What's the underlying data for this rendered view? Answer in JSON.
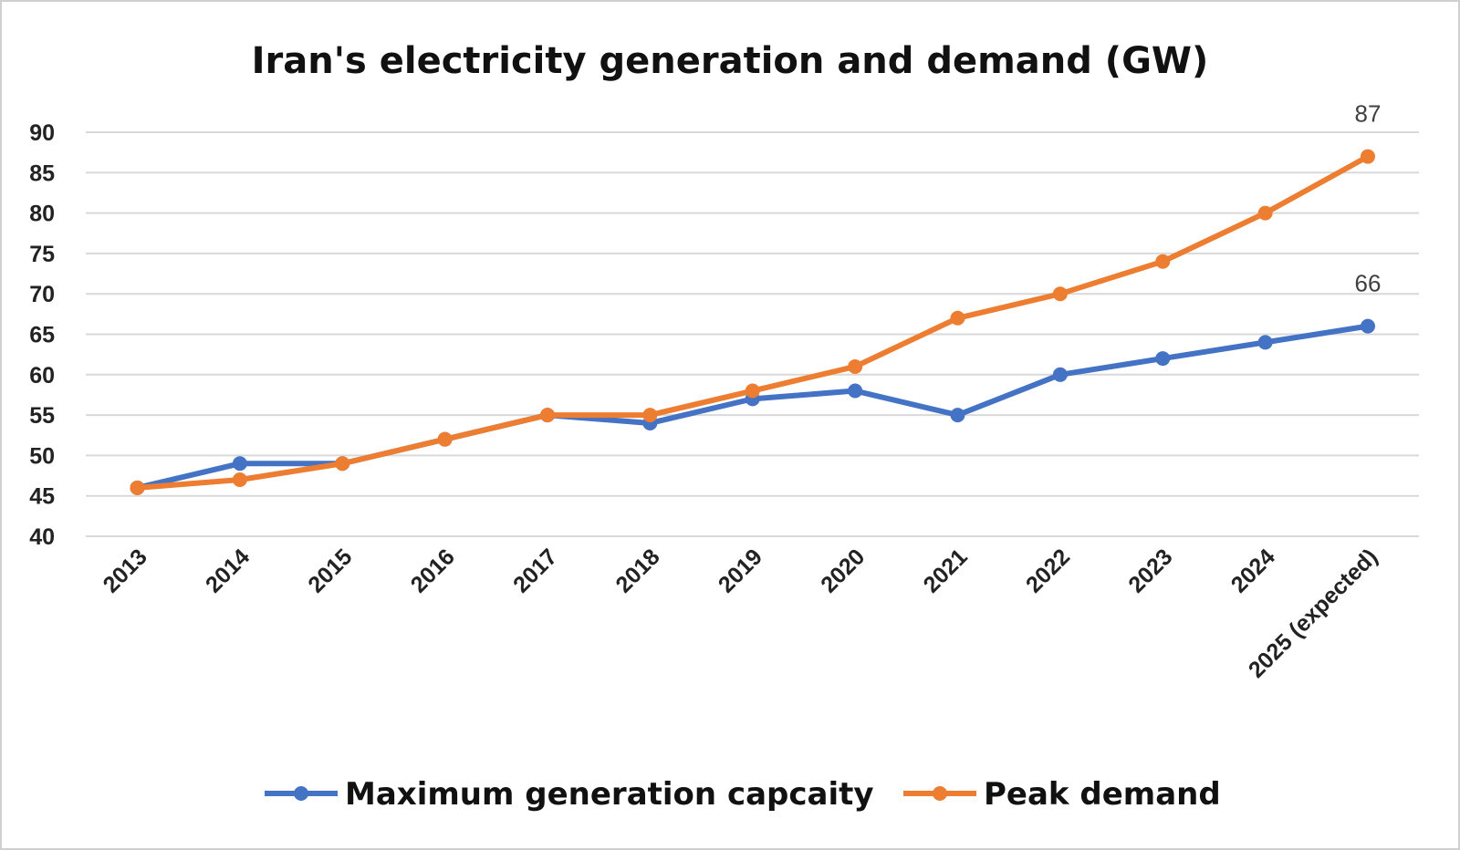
{
  "chart_data": {
    "type": "line",
    "title": "Iran's electricity generation and demand (GW)",
    "xlabel": "",
    "ylabel": "",
    "categories": [
      "2013",
      "2014",
      "2015",
      "2016",
      "2017",
      "2018",
      "2019",
      "2020",
      "2021",
      "2022",
      "2023",
      "2024",
      "2025 (expected)"
    ],
    "ylim": [
      40,
      90
    ],
    "yticks": [
      40,
      45,
      50,
      55,
      60,
      65,
      70,
      75,
      80,
      85,
      90
    ],
    "grid": true,
    "legend_position": "bottom",
    "series": [
      {
        "name": "Maximum generation capcaity",
        "color": "#4472C4",
        "values": [
          46,
          49,
          49,
          52,
          55,
          54,
          57,
          58,
          55,
          60,
          62,
          64,
          66
        ],
        "data_labels": {
          "12": "66"
        }
      },
      {
        "name": "Peak demand",
        "color": "#ED7D31",
        "values": [
          46,
          47,
          49,
          52,
          55,
          55,
          58,
          61,
          67,
          70,
          74,
          80,
          87
        ],
        "data_labels": {
          "12": "87"
        }
      }
    ]
  }
}
